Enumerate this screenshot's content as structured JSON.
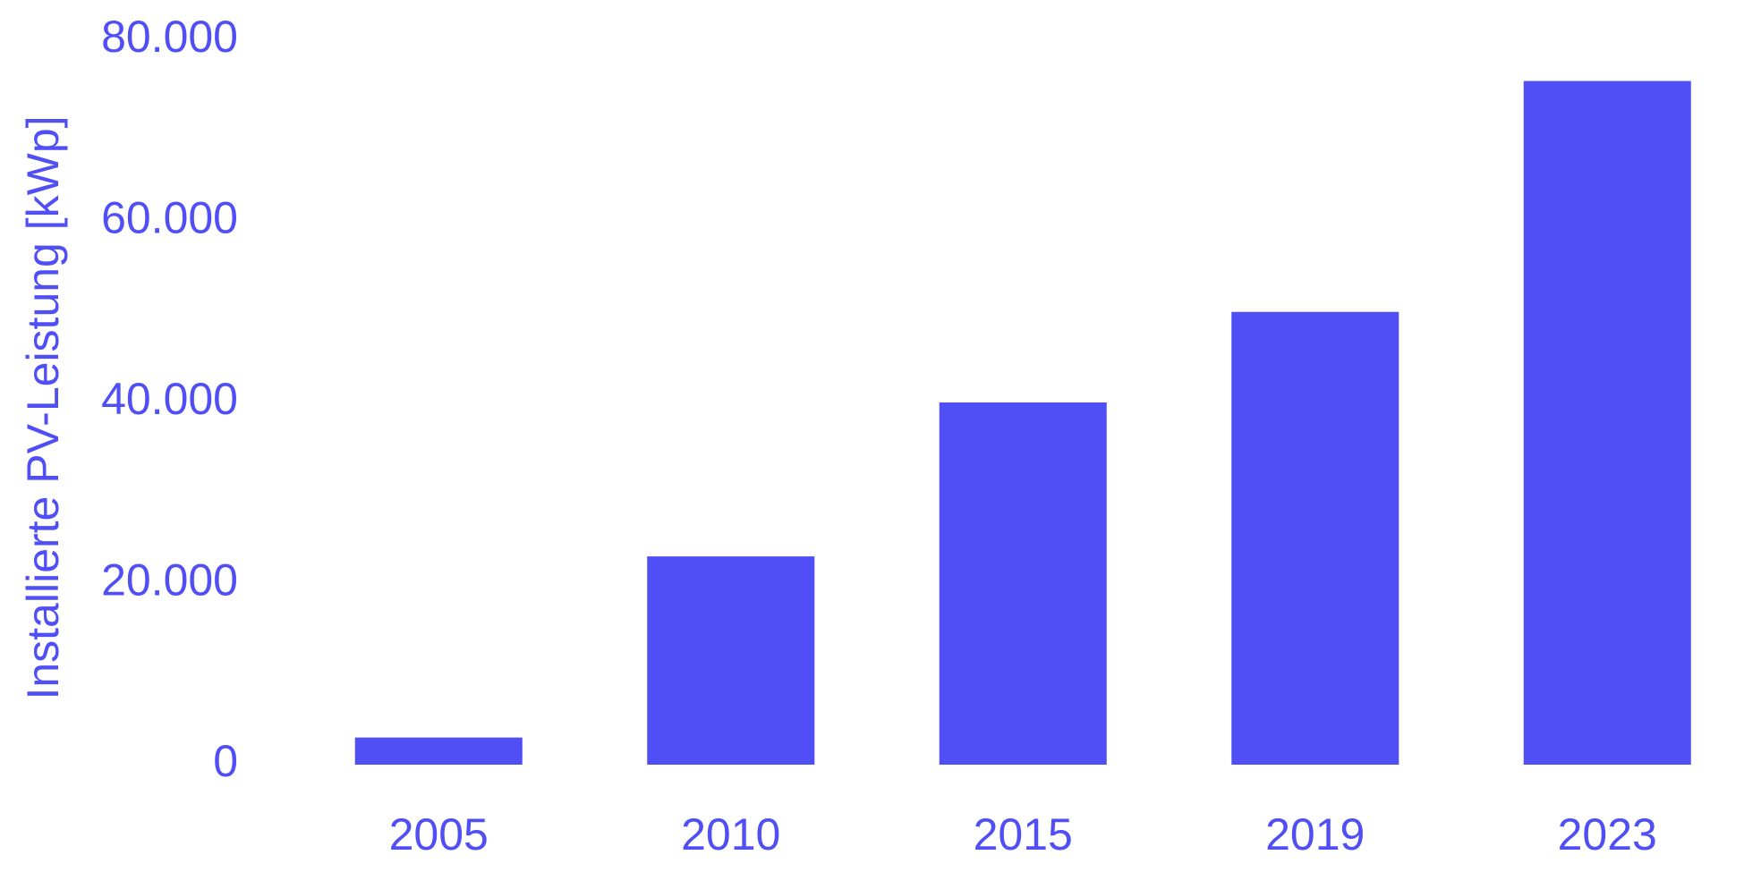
{
  "chart_data": {
    "type": "bar",
    "y_label": "Installierte PV-Leistung [kWp]",
    "categories": [
      "2005",
      "2010",
      "2015",
      "2019",
      "2023"
    ],
    "values": [
      3000,
      23000,
      40000,
      50000,
      75500
    ],
    "color": "#4f4ff5",
    "ylim": [
      0,
      80000
    ],
    "yticks": [
      0,
      {
        "value": 20000,
        "label": "20.000"
      },
      {
        "value": 40000,
        "label": "40.000"
      },
      {
        "value": 60000,
        "label": "60.000"
      },
      {
        "value": 80000,
        "label": "80.000"
      }
    ],
    "grid": false
  }
}
